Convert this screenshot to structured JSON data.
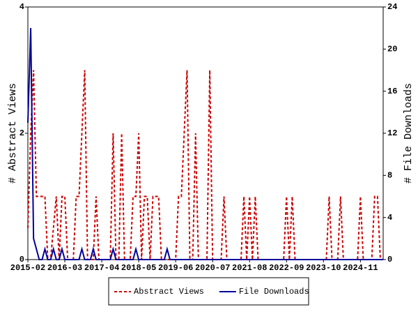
{
  "chart_data": {
    "type": "line",
    "y_label": "# Abstract Views",
    "y2_label": "# File Downloads",
    "categories": [
      "2015-02",
      null,
      null,
      null,
      null,
      null,
      null,
      null,
      null,
      null,
      null,
      null,
      null,
      "2016-03",
      null,
      null,
      null,
      null,
      null,
      null,
      null,
      null,
      null,
      null,
      null,
      null,
      "2017-04",
      null,
      null,
      null,
      null,
      null,
      null,
      null,
      null,
      null,
      null,
      null,
      null,
      "2018-05",
      null,
      null,
      null,
      null,
      null,
      null,
      null,
      null,
      null,
      null,
      null,
      null,
      "2019-06",
      null,
      null,
      null,
      null,
      null,
      null,
      null,
      null,
      null,
      null,
      null,
      null,
      "2020-07",
      null,
      null,
      null,
      null,
      null,
      null,
      null,
      null,
      null,
      null,
      null,
      null,
      "2021-08",
      null,
      null,
      null,
      null,
      null,
      null,
      null,
      null,
      null,
      null,
      null,
      null,
      "2022-09",
      null,
      null,
      null,
      null,
      null,
      null,
      null,
      null,
      null,
      null,
      null,
      null,
      "2023-10",
      null,
      null,
      null,
      null,
      null,
      null,
      null,
      null,
      null,
      null,
      null,
      null,
      "2024-11",
      null,
      null,
      null,
      null,
      null,
      null,
      null,
      null
    ],
    "series": [
      {
        "name": "Abstract Views",
        "color": "#cc0000",
        "dash": true,
        "values": [
          0.5,
          2,
          3,
          1,
          1,
          1,
          1,
          0,
          0,
          0.5,
          1,
          0,
          1,
          1,
          0,
          0,
          0,
          1,
          1,
          2,
          3,
          0,
          0,
          0,
          1,
          0,
          0,
          0,
          0,
          0,
          2,
          0,
          0,
          2,
          0,
          0,
          0,
          1,
          1,
          2,
          0,
          1,
          1,
          0,
          1,
          1,
          1,
          0,
          0,
          0,
          0,
          0,
          0,
          1,
          1,
          2,
          3,
          0,
          0,
          2,
          0,
          0,
          0,
          0,
          3,
          0,
          0,
          0,
          0,
          1,
          0,
          0,
          0,
          0,
          0,
          0,
          1,
          0,
          1,
          0,
          1,
          0,
          0,
          0,
          0,
          0,
          0,
          0,
          0,
          0,
          0,
          1,
          0,
          1,
          0,
          0,
          0,
          0,
          0,
          0,
          0,
          0,
          0,
          0,
          0,
          0,
          1,
          0,
          0,
          0,
          1,
          0,
          0,
          0,
          0,
          0,
          0,
          1,
          0,
          0,
          0,
          0,
          1,
          1,
          0,
          0
        ]
      },
      {
        "name": "File Downloads",
        "color": "#00009c",
        "axis": "y2",
        "values": [
          13,
          22,
          2,
          1,
          0,
          0,
          1,
          0,
          0,
          1,
          0,
          0,
          1,
          0,
          0,
          0,
          0,
          0,
          0,
          1,
          0,
          0,
          0,
          1,
          0,
          0,
          0,
          0,
          0,
          0,
          1,
          0,
          0,
          0,
          0,
          0,
          0,
          0,
          1,
          0,
          0,
          0,
          0,
          0,
          0,
          0,
          0,
          0,
          0,
          1,
          0,
          0,
          0,
          0,
          0,
          0,
          0,
          0,
          0,
          0,
          0,
          0,
          0,
          0,
          0,
          0,
          0,
          0,
          0,
          0,
          0,
          0,
          0,
          0,
          0,
          0,
          0,
          0,
          0,
          0,
          0,
          0,
          0,
          0,
          0,
          0,
          0,
          0,
          0,
          0,
          0,
          0,
          0,
          0,
          0,
          0,
          0,
          0,
          0,
          0,
          0,
          0,
          0,
          0,
          0,
          0,
          0,
          0,
          0,
          0,
          0,
          0,
          0,
          0,
          0,
          0,
          0,
          0,
          0,
          0,
          0,
          0,
          0,
          0,
          0,
          0
        ]
      }
    ],
    "ylim": [
      0,
      4
    ],
    "yticks": [
      0,
      2,
      4
    ],
    "y2lim": [
      0,
      24
    ],
    "y2ticks": [
      0,
      4,
      8,
      12,
      16,
      20,
      24
    ],
    "legend": "bottom"
  }
}
